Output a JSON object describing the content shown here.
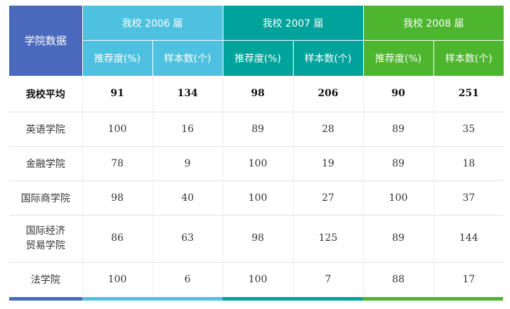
{
  "header": {
    "corner": "学院数据",
    "groups": [
      "我校 2006 届",
      "我校 2007 届",
      "我校 2008 届"
    ],
    "sub": [
      "推荐度(%)",
      "样本数(个)"
    ]
  },
  "rows": [
    {
      "name": "我校平均",
      "v": [
        "91",
        "134",
        "98",
        "206",
        "90",
        "251"
      ]
    },
    {
      "name": "英语学院",
      "v": [
        "100",
        "16",
        "89",
        "28",
        "89",
        "35"
      ]
    },
    {
      "name": "金融学院",
      "v": [
        "78",
        "9",
        "100",
        "19",
        "89",
        "18"
      ]
    },
    {
      "name": "国际商学院",
      "v": [
        "98",
        "40",
        "100",
        "27",
        "100",
        "37"
      ]
    },
    {
      "name_line1": "国际经济",
      "name_line2": "贸易学院",
      "v": [
        "86",
        "63",
        "98",
        "125",
        "89",
        "144"
      ]
    },
    {
      "name": "法学院",
      "v": [
        "100",
        "6",
        "100",
        "7",
        "88",
        "17"
      ]
    }
  ],
  "colors": {
    "corner": "#4a69bd",
    "group_2006": "#4fc1e0",
    "group_2007": "#00a39b",
    "group_2008": "#4db52e"
  }
}
